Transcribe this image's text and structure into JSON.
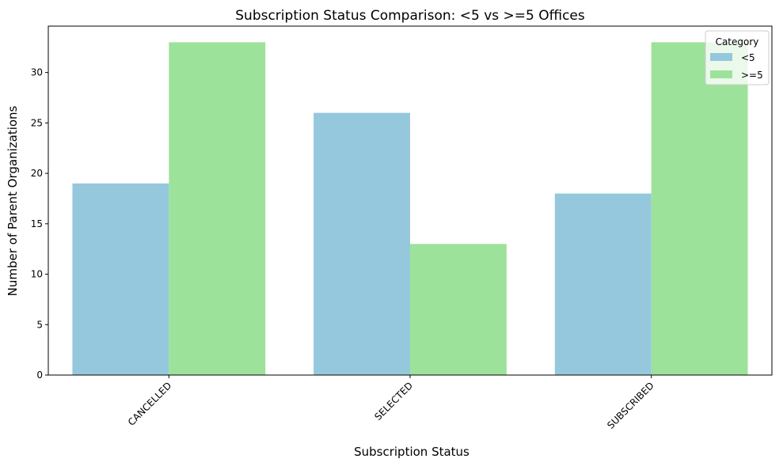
{
  "chart_data": {
    "type": "bar",
    "title": "Subscription Status Comparison: <5 vs >=5 Offices",
    "xlabel": "Subscription Status",
    "ylabel": "Number of Parent Organizations",
    "categories": [
      "CANCELLED",
      "SELECTED",
      "SUBSCRIBED"
    ],
    "series": [
      {
        "name": "<5",
        "values": [
          19,
          26,
          18
        ],
        "color": "#95c8dd"
      },
      {
        "name": ">=5",
        "values": [
          33,
          13,
          33
        ],
        "color": "#9de29a"
      }
    ],
    "ylim": [
      0,
      34.6
    ],
    "yticks": [
      0,
      5,
      10,
      15,
      20,
      25,
      30
    ],
    "grid": false,
    "legend": {
      "title": "Category",
      "placement": "top-right"
    },
    "xtick_rotation": 45
  }
}
